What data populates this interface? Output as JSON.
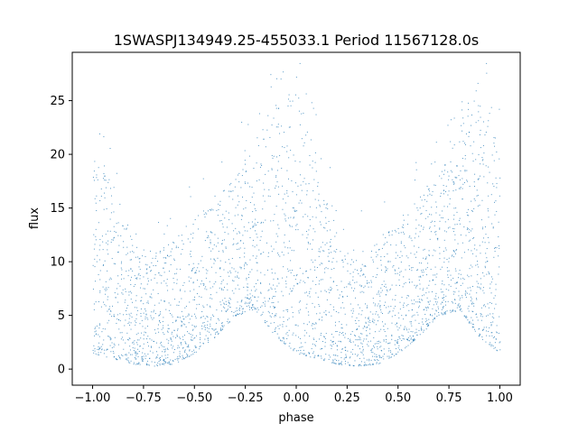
{
  "chart_data": {
    "type": "scatter",
    "title": "1SWASPJ134949.25-455033.1 Period 11567128.0s",
    "xlabel": "phase",
    "ylabel": "flux",
    "xlim": [
      -1.1,
      1.1
    ],
    "ylim": [
      -1.5,
      29.5
    ],
    "xticks": [
      -1.0,
      -0.75,
      -0.5,
      -0.25,
      0.0,
      0.25,
      0.5,
      0.75,
      1.0
    ],
    "xtick_labels": [
      "−1.00",
      "−0.75",
      "−0.50",
      "−0.25",
      "0.00",
      "0.25",
      "0.50",
      "0.75",
      "1.00"
    ],
    "yticks": [
      0,
      5,
      10,
      15,
      20,
      25
    ],
    "ytick_labels": [
      "0",
      "5",
      "10",
      "15",
      "20",
      "25"
    ],
    "grid": false,
    "marker_color": "#1f77b4",
    "series": [
      {
        "envelope": {
          "phase": [
            -1.0,
            -0.9,
            -0.8,
            -0.7,
            -0.6,
            -0.5,
            -0.4,
            -0.3,
            -0.2,
            -0.1,
            0.0,
            0.1,
            0.2,
            0.3,
            0.4,
            0.5,
            0.6,
            0.7,
            0.8,
            0.9,
            1.0
          ],
          "flux_low": [
            1.5,
            1.0,
            0.5,
            0.3,
            0.5,
            1.5,
            3.0,
            5.0,
            5.5,
            3.0,
            1.5,
            1.0,
            0.5,
            0.3,
            0.5,
            1.5,
            3.0,
            5.0,
            5.5,
            3.0,
            1.5
          ],
          "flux_high": [
            20,
            18,
            12,
            11,
            12,
            14,
            16,
            18,
            22,
            25,
            26,
            20,
            12,
            11,
            12,
            14,
            16,
            18,
            22,
            25,
            24
          ]
        }
      }
    ]
  }
}
